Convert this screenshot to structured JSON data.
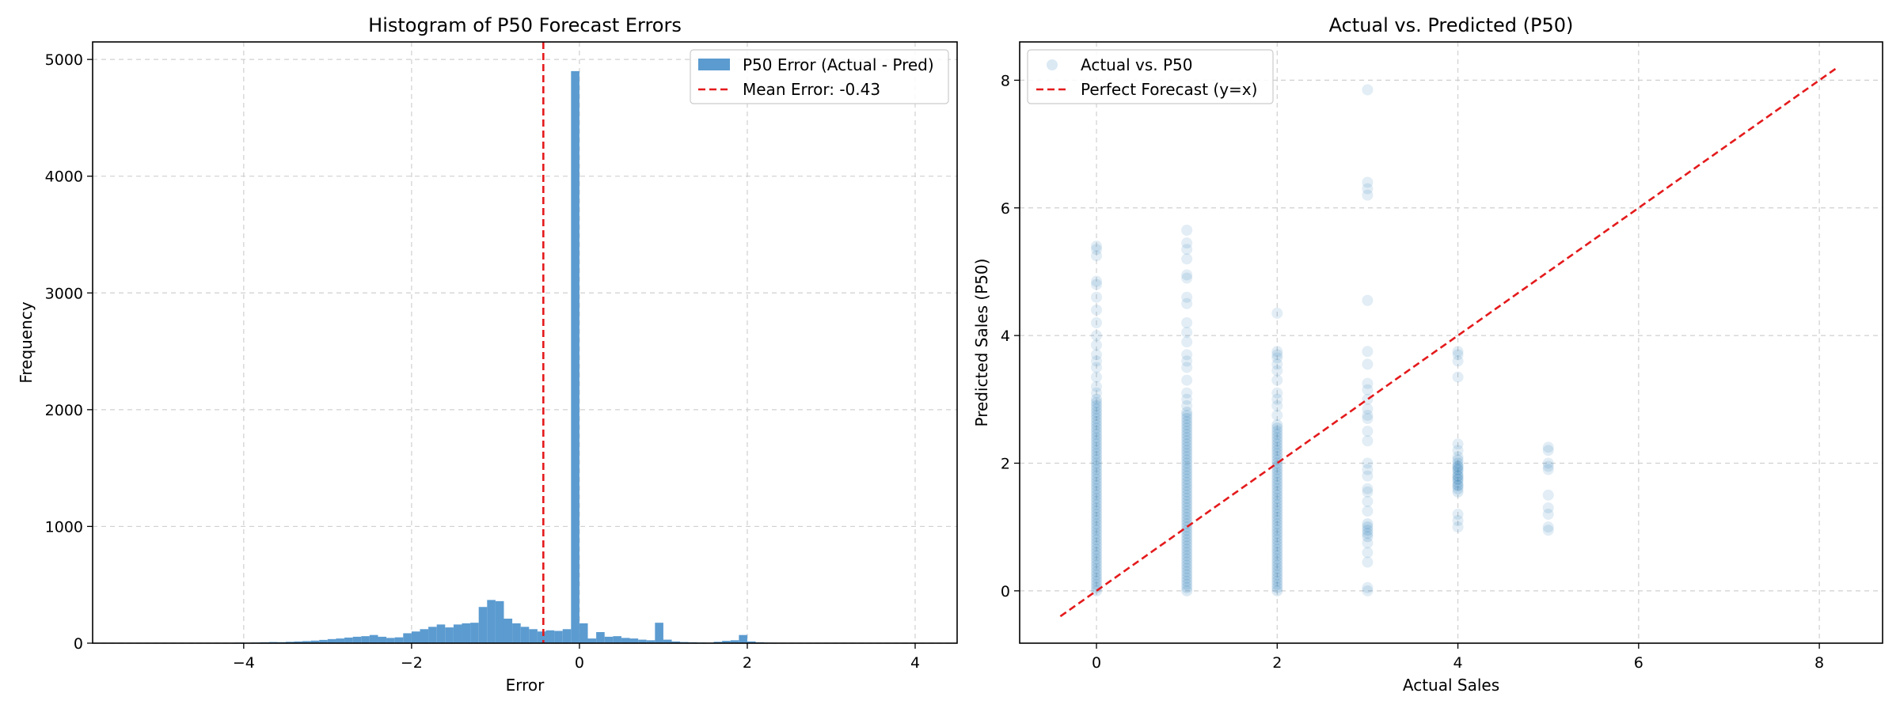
{
  "chart_data": [
    {
      "type": "bar",
      "title": "Histogram of P50 Forecast Errors",
      "xlabel": "Error",
      "ylabel": "Frequency",
      "xlim": [
        -5.8,
        4.5
      ],
      "ylim": [
        0,
        5150
      ],
      "xticks": [
        -4,
        -2,
        0,
        2,
        4
      ],
      "xtick_labels": [
        "−4",
        "−2",
        "0",
        "2",
        "4"
      ],
      "yticks": [
        0,
        1000,
        2000,
        3000,
        4000,
        5000
      ],
      "ytick_labels": [
        "0",
        "1000",
        "2000",
        "3000",
        "4000",
        "5000"
      ],
      "grid": true,
      "legend_position": "top-right",
      "bar_color": "#5b9bd0",
      "mean_color": "#e41a1c",
      "legend": [
        "P50 Error (Actual - Pred)",
        "Mean Error: -0.43"
      ],
      "mean_error": -0.43,
      "bin_width": 0.1,
      "bin_centers": [
        -4.25,
        -4.15,
        -4.05,
        -3.95,
        -3.85,
        -3.75,
        -3.65,
        -3.55,
        -3.45,
        -3.35,
        -3.25,
        -3.15,
        -3.05,
        -2.95,
        -2.85,
        -2.75,
        -2.65,
        -2.55,
        -2.45,
        -2.35,
        -2.25,
        -2.15,
        -2.05,
        -1.95,
        -1.85,
        -1.75,
        -1.65,
        -1.55,
        -1.45,
        -1.35,
        -1.25,
        -1.15,
        -1.05,
        -0.95,
        -0.85,
        -0.75,
        -0.65,
        -0.55,
        -0.45,
        -0.35,
        -0.25,
        -0.15,
        -0.05,
        0.05,
        0.15,
        0.25,
        0.35,
        0.45,
        0.55,
        0.65,
        0.75,
        0.85,
        0.95,
        1.05,
        1.15,
        1.25,
        1.35,
        1.45,
        1.55,
        1.65,
        1.75,
        1.85,
        1.95,
        2.05,
        2.15,
        2.25,
        2.35,
        2.45,
        2.55
      ],
      "counts": [
        3,
        2,
        5,
        4,
        6,
        8,
        10,
        9,
        12,
        15,
        18,
        22,
        28,
        35,
        40,
        48,
        55,
        60,
        70,
        55,
        45,
        50,
        85,
        100,
        120,
        140,
        160,
        135,
        160,
        170,
        175,
        310,
        370,
        360,
        210,
        170,
        140,
        120,
        100,
        110,
        105,
        120,
        4900,
        170,
        40,
        95,
        55,
        60,
        45,
        40,
        30,
        25,
        175,
        30,
        15,
        10,
        8,
        6,
        5,
        12,
        20,
        25,
        70,
        15,
        8,
        5,
        4,
        3,
        2
      ]
    },
    {
      "type": "scatter",
      "title": "Actual vs. Predicted (P50)",
      "xlabel": "Actual Sales",
      "ylabel": "Predicted Sales (P50)",
      "xlim": [
        -0.85,
        8.7
      ],
      "ylim": [
        -0.82,
        8.6
      ],
      "xticks": [
        0,
        2,
        4,
        6,
        8
      ],
      "xtick_labels": [
        "0",
        "2",
        "4",
        "6",
        "8"
      ],
      "yticks": [
        0,
        2,
        4,
        6,
        8
      ],
      "ytick_labels": [
        "0",
        "2",
        "4",
        "6",
        "8"
      ],
      "grid": true,
      "legend_position": "top-left",
      "point_color": "#1f77b4",
      "line_color": "#e41a1c",
      "legend": [
        "Actual vs. P50",
        "Perfect Forecast (y=x)"
      ],
      "perfect_line": [
        [
          -0.4,
          -0.4
        ],
        [
          8.2,
          8.2
        ]
      ],
      "columns": [
        {
          "x": 0,
          "dense": [
            0,
            3.0
          ],
          "extra": [
            3.1,
            3.2,
            3.35,
            3.5,
            3.6,
            3.7,
            3.85,
            4.0,
            4.2,
            4.4,
            4.6,
            4.8,
            4.85,
            5.25,
            5.35,
            5.4
          ]
        },
        {
          "x": 1,
          "dense": [
            0,
            2.8
          ],
          "extra": [
            2.9,
            3.0,
            3.1,
            3.3,
            3.5,
            3.6,
            3.7,
            3.9,
            4.05,
            4.2,
            4.5,
            4.6,
            4.9,
            4.95,
            5.2,
            5.35,
            5.45,
            5.65
          ]
        },
        {
          "x": 2,
          "dense": [
            0,
            2.6
          ],
          "extra": [
            2.75,
            2.9,
            3.0,
            3.1,
            3.3,
            3.45,
            3.55,
            3.65,
            3.7,
            3.75,
            4.35
          ]
        },
        {
          "x": 3,
          "dense": [
            0.85,
            1.05
          ],
          "extra": [
            0.0,
            0.05,
            0.45,
            0.6,
            0.75,
            1.25,
            1.4,
            1.55,
            1.6,
            1.8,
            1.9,
            2.0,
            2.35,
            2.5,
            2.7,
            2.75,
            2.85,
            3.0,
            3.15,
            3.25,
            3.55,
            3.75,
            4.55,
            6.2,
            6.3,
            6.4,
            7.85
          ]
        },
        {
          "x": 4,
          "dense": [
            1.55,
            2.05
          ],
          "extra": [
            1.0,
            1.1,
            1.2,
            1.65,
            1.75,
            1.8,
            1.9,
            1.95,
            2.1,
            2.2,
            2.3,
            3.35,
            3.6,
            3.7,
            3.75
          ]
        },
        {
          "x": 5,
          "dense": [],
          "extra": [
            0.95,
            1.0,
            1.2,
            1.3,
            1.5,
            1.9,
            1.95,
            2.0,
            2.2,
            2.25
          ]
        }
      ]
    }
  ]
}
